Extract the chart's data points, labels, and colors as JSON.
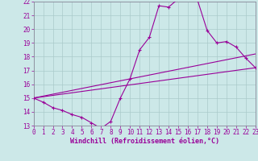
{
  "xlabel": "Windchill (Refroidissement éolien,°C)",
  "bg_color": "#cce8e8",
  "grid_color": "#aacaca",
  "line_color": "#990099",
  "spine_color": "#888899",
  "xmin": 0,
  "xmax": 23,
  "ymin": 13,
  "ymax": 22,
  "xticks": [
    0,
    1,
    2,
    3,
    4,
    5,
    6,
    7,
    8,
    9,
    10,
    11,
    12,
    13,
    14,
    15,
    16,
    17,
    18,
    19,
    20,
    21,
    22,
    23
  ],
  "yticks": [
    13,
    14,
    15,
    16,
    17,
    18,
    19,
    20,
    21,
    22
  ],
  "curve1_x": [
    0,
    1,
    2,
    3,
    4,
    5,
    6,
    7,
    8,
    9,
    10,
    11,
    12,
    13,
    14,
    15,
    16,
    17,
    18,
    19,
    20,
    21,
    22,
    23
  ],
  "curve1_y": [
    15.0,
    14.7,
    14.3,
    14.1,
    13.8,
    13.6,
    13.2,
    12.8,
    13.3,
    15.0,
    16.4,
    18.5,
    19.4,
    21.7,
    21.6,
    22.2,
    22.2,
    22.1,
    19.9,
    19.0,
    19.1,
    18.7,
    17.9,
    17.2
  ],
  "line2_x": [
    0,
    23
  ],
  "line2_y": [
    15.0,
    17.2
  ],
  "line3_x": [
    0,
    23
  ],
  "line3_y": [
    15.0,
    18.2
  ],
  "tick_fontsize": 5.5,
  "xlabel_fontsize": 6.0
}
